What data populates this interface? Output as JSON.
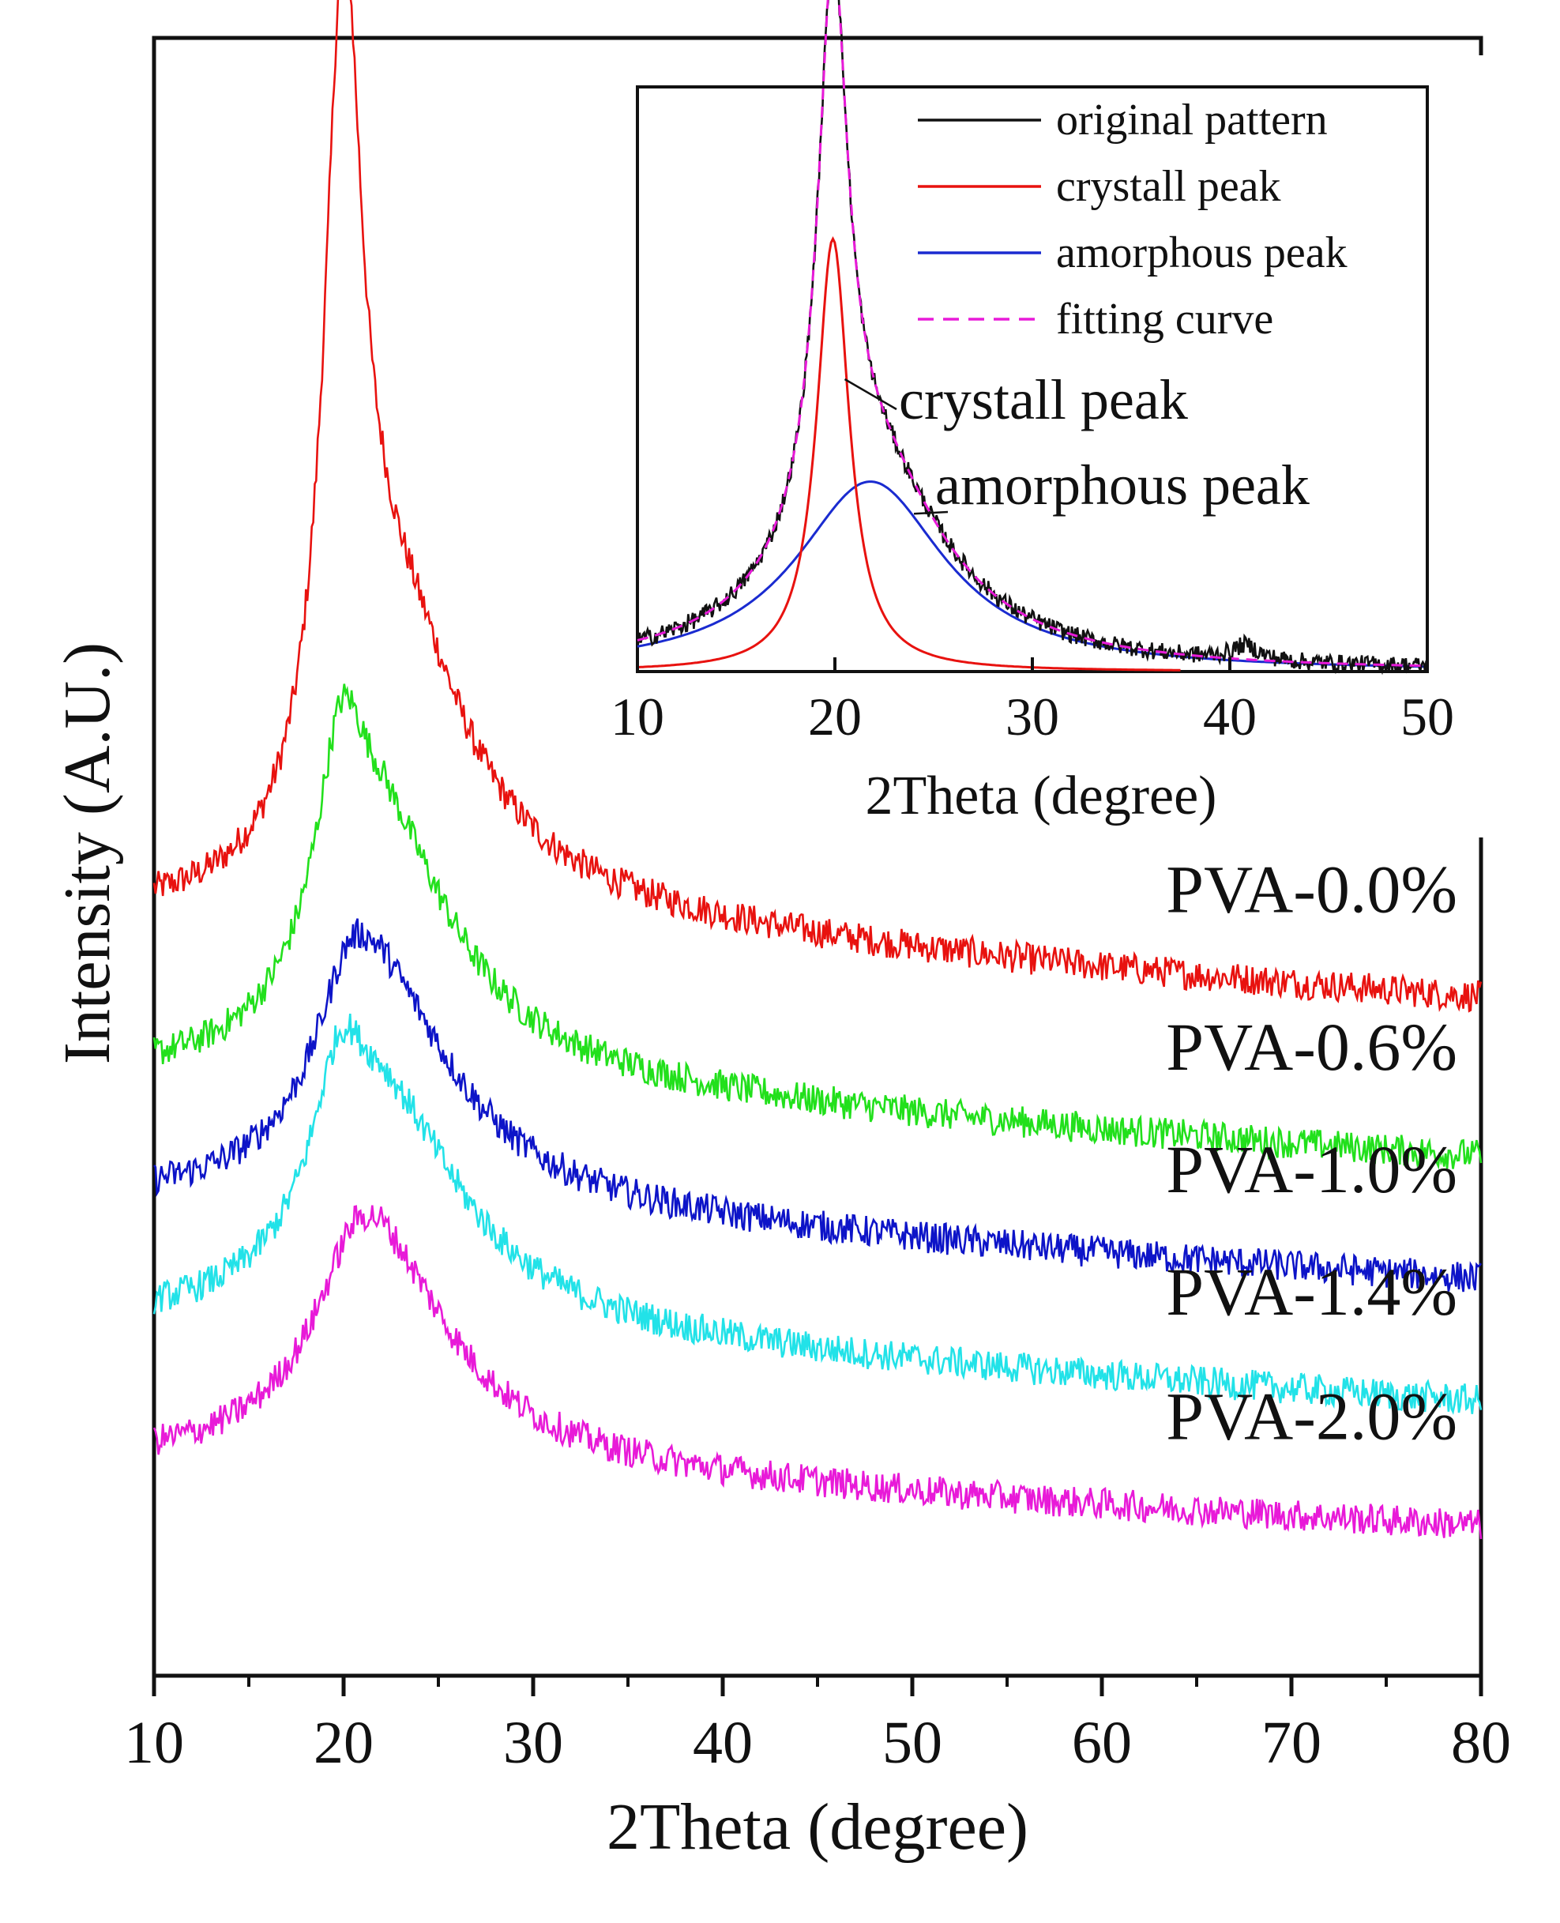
{
  "chart_data": [
    {
      "id": "main",
      "type": "line",
      "title": "",
      "xlabel": "2Theta (degree)",
      "ylabel": "Intensity (A.U.)",
      "xlim": [
        10,
        80
      ],
      "xticks": [
        10,
        20,
        30,
        40,
        50,
        60,
        70,
        80
      ],
      "yticks": [],
      "grid": false,
      "stacked_offset": true,
      "legend": "inline labels at right end of each curve",
      "series": [
        {
          "name": "PVA-0.0%",
          "color": "#e8120f",
          "base": 2.82,
          "peak_center": 20.0,
          "peak_width": 1.2,
          "peak_height": 4.1,
          "amorph_center": 23.0,
          "amorph_width": 4.2,
          "amorph_height": 1.15,
          "tail": 0.72,
          "end_value": 2.42
        },
        {
          "name": "PVA-0.6%",
          "color": "#22e01c",
          "base": 2.0,
          "peak_center": 19.9,
          "peak_width": 1.6,
          "peak_height": 1.05,
          "amorph_center": 22.2,
          "amorph_width": 4.6,
          "amorph_height": 1.05,
          "tail": 0.45,
          "end_value": 1.62
        },
        {
          "name": "PVA-1.0%",
          "color": "#0d14c8",
          "base": 1.38,
          "peak_center": 20.3,
          "peak_width": 2.0,
          "peak_height": 0.55,
          "amorph_center": 22.3,
          "amorph_width": 4.8,
          "amorph_height": 0.88,
          "tail": 0.36,
          "end_value": 1.0
        },
        {
          "name": "PVA-1.4%",
          "color": "#22e2e8",
          "base": 0.75,
          "peak_center": 19.8,
          "peak_width": 1.7,
          "peak_height": 0.7,
          "amorph_center": 22.3,
          "amorph_width": 5.0,
          "amorph_height": 0.98,
          "tail": 0.36,
          "end_value": 0.38
        },
        {
          "name": "PVA-2.0%",
          "color": "#e81ad8",
          "base": 0.05,
          "peak_center": 20.5,
          "peak_width": 2.0,
          "peak_height": 0.35,
          "amorph_center": 22.0,
          "amorph_width": 4.8,
          "amorph_height": 0.92,
          "tail": 0.33,
          "end_value": -0.25
        }
      ],
      "ylim": [
        -1.0,
        7.3
      ]
    },
    {
      "id": "inset",
      "type": "line",
      "title": "",
      "xlabel": "2Theta (degree)",
      "ylabel": "",
      "xlim": [
        10,
        50
      ],
      "xticks": [
        10,
        20,
        30,
        40,
        50
      ],
      "ylim": [
        0,
        1.0
      ],
      "grid": false,
      "legend": "top-right",
      "series": [
        {
          "name": "original pattern",
          "color": "#111111",
          "style": "solid",
          "crystal_height": 0.52,
          "crystal_center": 19.9,
          "crystal_width": 1.0,
          "amorph_height": 0.325,
          "amorph_center": 21.8,
          "amorph_width": 4.2,
          "small_peak_center": 40.8,
          "small_peak_height": 0.025
        },
        {
          "name": "crystall peak",
          "color": "#e8120f",
          "style": "solid",
          "center": 19.9,
          "width": 1.0,
          "height": 0.74
        },
        {
          "name": "amorphous peak",
          "color": "#1a2bd0",
          "style": "solid",
          "center": 21.8,
          "width": 4.6,
          "height": 0.325
        },
        {
          "name": "fitting curve",
          "color": "#e81ad8",
          "style": "dashed"
        }
      ],
      "annotations": [
        {
          "text": "crystall peak",
          "target_x": 20.5,
          "target_y": 0.5
        },
        {
          "text": "amorphous peak",
          "target_x": 24.0,
          "target_y": 0.27
        }
      ]
    }
  ]
}
